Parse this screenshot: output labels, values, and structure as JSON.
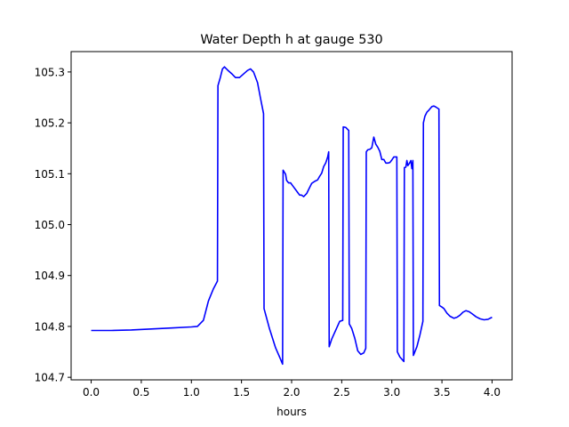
{
  "chart_data": {
    "type": "line",
    "title": "Water Depth h at gauge 530",
    "xlabel": "hours",
    "ylabel": "",
    "xlim": [
      -0.2,
      4.2
    ],
    "ylim": [
      104.695,
      105.34
    ],
    "xticks": [
      "0.0",
      "0.5",
      "1.0",
      "1.5",
      "2.0",
      "2.5",
      "3.0",
      "3.5",
      "4.0"
    ],
    "yticks": [
      "104.7",
      "104.8",
      "104.9",
      "105.0",
      "105.1",
      "105.2",
      "105.3"
    ],
    "grid": false,
    "series": [
      {
        "color": "#0000ff",
        "points": [
          [
            0.0,
            104.792
          ],
          [
            0.2,
            104.792
          ],
          [
            0.4,
            104.793
          ],
          [
            0.6,
            104.795
          ],
          [
            0.8,
            104.797
          ],
          [
            1.0,
            104.799
          ],
          [
            1.06,
            104.8
          ],
          [
            1.12,
            104.812
          ],
          [
            1.17,
            104.85
          ],
          [
            1.22,
            104.874
          ],
          [
            1.26,
            104.889
          ],
          [
            1.265,
            105.273
          ],
          [
            1.29,
            105.29
          ],
          [
            1.31,
            105.306
          ],
          [
            1.33,
            105.31
          ],
          [
            1.36,
            105.304
          ],
          [
            1.4,
            105.297
          ],
          [
            1.44,
            105.289
          ],
          [
            1.48,
            105.289
          ],
          [
            1.52,
            105.296
          ],
          [
            1.56,
            105.303
          ],
          [
            1.59,
            105.306
          ],
          [
            1.62,
            105.3
          ],
          [
            1.66,
            105.279
          ],
          [
            1.69,
            105.248
          ],
          [
            1.72,
            105.218
          ],
          [
            1.725,
            104.835
          ],
          [
            1.78,
            104.795
          ],
          [
            1.84,
            104.758
          ],
          [
            1.88,
            104.74
          ],
          [
            1.91,
            104.726
          ],
          [
            1.915,
            105.107
          ],
          [
            1.94,
            105.099
          ],
          [
            1.95,
            105.087
          ],
          [
            1.97,
            105.082
          ],
          [
            1.99,
            105.082
          ],
          [
            2.02,
            105.074
          ],
          [
            2.05,
            105.066
          ],
          [
            2.08,
            105.058
          ],
          [
            2.1,
            105.058
          ],
          [
            2.12,
            105.055
          ],
          [
            2.15,
            105.061
          ],
          [
            2.17,
            105.069
          ],
          [
            2.2,
            105.081
          ],
          [
            2.23,
            105.085
          ],
          [
            2.26,
            105.088
          ],
          [
            2.28,
            105.095
          ],
          [
            2.3,
            105.101
          ],
          [
            2.32,
            105.114
          ],
          [
            2.34,
            105.121
          ],
          [
            2.35,
            105.127
          ],
          [
            2.36,
            105.133
          ],
          [
            2.37,
            105.143
          ],
          [
            2.375,
            104.76
          ],
          [
            2.4,
            104.775
          ],
          [
            2.45,
            104.797
          ],
          [
            2.48,
            104.81
          ],
          [
            2.51,
            104.812
          ],
          [
            2.515,
            105.192
          ],
          [
            2.54,
            105.191
          ],
          [
            2.57,
            105.185
          ],
          [
            2.575,
            104.805
          ],
          [
            2.6,
            104.796
          ],
          [
            2.63,
            104.777
          ],
          [
            2.66,
            104.752
          ],
          [
            2.69,
            104.745
          ],
          [
            2.72,
            104.748
          ],
          [
            2.74,
            104.757
          ],
          [
            2.745,
            105.143
          ],
          [
            2.76,
            105.147
          ],
          [
            2.78,
            105.148
          ],
          [
            2.8,
            105.151
          ],
          [
            2.82,
            105.172
          ],
          [
            2.84,
            105.158
          ],
          [
            2.86,
            105.152
          ],
          [
            2.88,
            105.144
          ],
          [
            2.9,
            105.128
          ],
          [
            2.92,
            105.128
          ],
          [
            2.94,
            105.121
          ],
          [
            2.96,
            105.121
          ],
          [
            2.98,
            105.122
          ],
          [
            3.0,
            105.127
          ],
          [
            3.02,
            105.133
          ],
          [
            3.05,
            105.133
          ],
          [
            3.055,
            104.75
          ],
          [
            3.08,
            104.74
          ],
          [
            3.12,
            104.731
          ],
          [
            3.125,
            105.112
          ],
          [
            3.14,
            105.113
          ],
          [
            3.15,
            105.126
          ],
          [
            3.16,
            105.116
          ],
          [
            3.18,
            105.122
          ],
          [
            3.19,
            105.126
          ],
          [
            3.2,
            105.11
          ],
          [
            3.21,
            105.126
          ],
          [
            3.215,
            104.743
          ],
          [
            3.25,
            104.76
          ],
          [
            3.28,
            104.783
          ],
          [
            3.31,
            104.81
          ],
          [
            3.315,
            105.2
          ],
          [
            3.33,
            105.213
          ],
          [
            3.35,
            105.221
          ],
          [
            3.37,
            105.225
          ],
          [
            3.4,
            105.232
          ],
          [
            3.42,
            105.233
          ],
          [
            3.44,
            105.231
          ],
          [
            3.47,
            105.227
          ],
          [
            3.475,
            104.841
          ],
          [
            3.5,
            104.838
          ],
          [
            3.52,
            104.835
          ],
          [
            3.55,
            104.826
          ],
          [
            3.58,
            104.82
          ],
          [
            3.62,
            104.816
          ],
          [
            3.65,
            104.818
          ],
          [
            3.68,
            104.822
          ],
          [
            3.71,
            104.828
          ],
          [
            3.74,
            104.831
          ],
          [
            3.77,
            104.829
          ],
          [
            3.8,
            104.825
          ],
          [
            3.84,
            104.819
          ],
          [
            3.88,
            104.815
          ],
          [
            3.92,
            104.813
          ],
          [
            3.96,
            104.814
          ],
          [
            4.0,
            104.818
          ]
        ]
      }
    ]
  }
}
